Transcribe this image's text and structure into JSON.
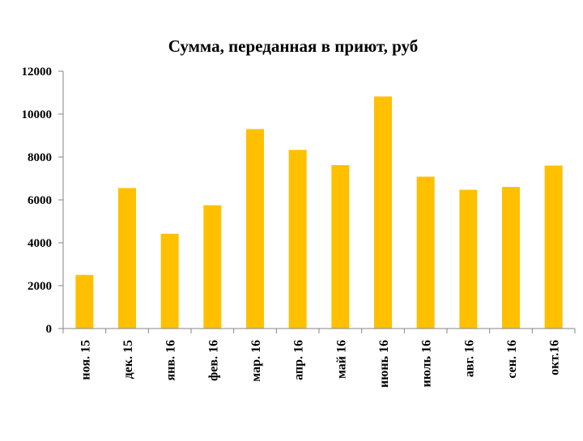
{
  "chart_data": {
    "type": "bar",
    "title": "Сумма, переданная в приют, руб",
    "xlabel": "",
    "ylabel": "",
    "categories": [
      "ноя. 15",
      "дек. 15",
      "янв. 16",
      "фев. 16",
      "мар. 16",
      "апр. 16",
      "май 16",
      "июнь 16",
      "июль 16",
      "авг. 16",
      "сен. 16",
      "окт.16"
    ],
    "values": [
      2500,
      6550,
      4420,
      5750,
      9300,
      8330,
      7620,
      10820,
      7080,
      6470,
      6600,
      7600
    ],
    "ylim": [
      0,
      12000
    ],
    "yticks": [
      "0",
      "2000",
      "4000",
      "6000",
      "8000",
      "10000",
      "12000"
    ],
    "grid": false,
    "legend": "none",
    "colors": {
      "bar": "#FFC000",
      "axis": "#868686"
    }
  }
}
